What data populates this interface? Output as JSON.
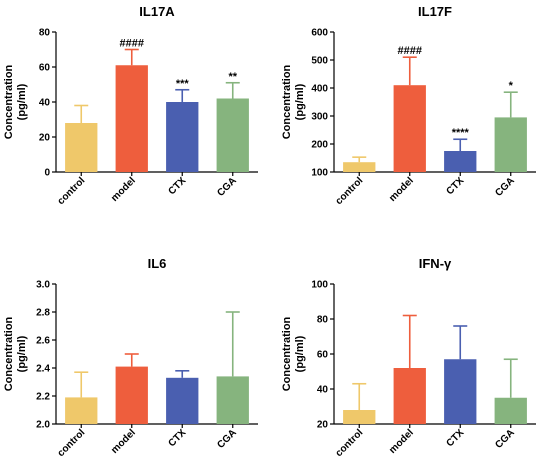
{
  "chart_data": [
    {
      "type": "bar",
      "title": "IL17A",
      "ylabel": "Concentration (pg/ml)",
      "categories": [
        "control",
        "model",
        "CTX",
        "CGA"
      ],
      "values": [
        28,
        61,
        40,
        42
      ],
      "errors": [
        10,
        9,
        7,
        9
      ],
      "significance": [
        "",
        "####",
        "***",
        "**"
      ],
      "ylim": [
        0,
        80
      ],
      "yticks": [
        0,
        20,
        40,
        60,
        80
      ],
      "colors": [
        "#EFC86A",
        "#EE5E3D",
        "#4A5FB0",
        "#86B47E"
      ]
    },
    {
      "type": "bar",
      "title": "IL17F",
      "ylabel": "Concentration (pg/ml)",
      "categories": [
        "control",
        "model",
        "CTX",
        "CGA"
      ],
      "values": [
        135,
        410,
        175,
        295
      ],
      "errors": [
        18,
        100,
        42,
        90
      ],
      "significance": [
        "",
        "####",
        "****",
        "*"
      ],
      "ylim": [
        100,
        600
      ],
      "yticks": [
        100,
        200,
        300,
        400,
        500,
        600
      ],
      "colors": [
        "#EFC86A",
        "#EE5E3D",
        "#4A5FB0",
        "#86B47E"
      ]
    },
    {
      "type": "bar",
      "title": "IL6",
      "ylabel": "Concentration (pg/ml)",
      "categories": [
        "control",
        "model",
        "CTX",
        "CGA"
      ],
      "values": [
        2.19,
        2.41,
        2.33,
        2.34
      ],
      "errors": [
        0.18,
        0.09,
        0.05,
        0.46
      ],
      "significance": [
        "",
        "",
        "",
        ""
      ],
      "ylim": [
        2.0,
        3.0
      ],
      "yticks": [
        "2.0",
        "2.2",
        "2.4",
        "2.6",
        "2.8",
        "3.0"
      ],
      "colors": [
        "#EFC86A",
        "#EE5E3D",
        "#4A5FB0",
        "#86B47E"
      ]
    },
    {
      "type": "bar",
      "title": "IFN-γ",
      "ylabel": "Concentration (pg/ml)",
      "categories": [
        "control",
        "model",
        "CTX",
        "CGA"
      ],
      "values": [
        28,
        52,
        57,
        35
      ],
      "errors": [
        15,
        30,
        19,
        22
      ],
      "significance": [
        "",
        "",
        "",
        ""
      ],
      "ylim": [
        20,
        100
      ],
      "yticks": [
        20,
        40,
        60,
        80,
        100
      ],
      "colors": [
        "#EFC86A",
        "#EE5E3D",
        "#4A5FB0",
        "#86B47E"
      ]
    }
  ]
}
